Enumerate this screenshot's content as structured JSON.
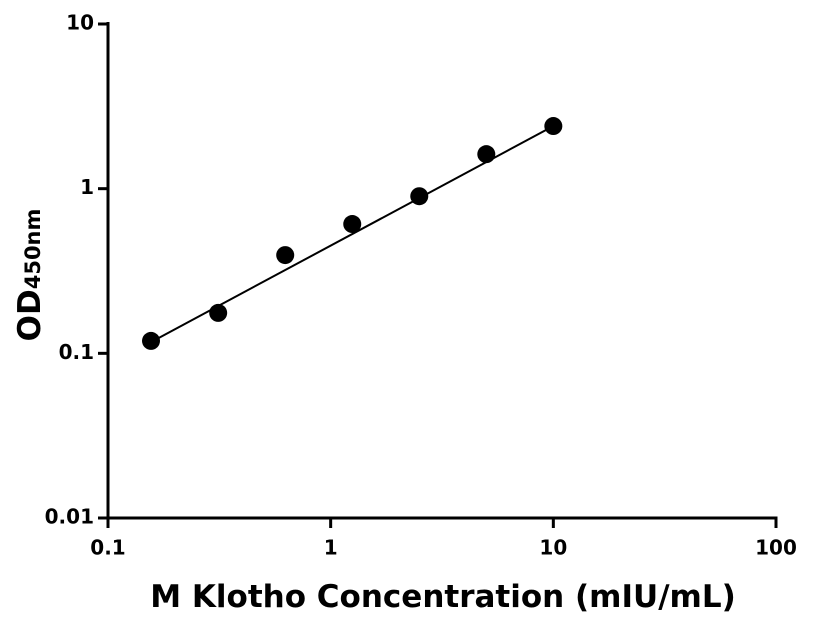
{
  "chart_data": {
    "type": "scatter",
    "xlabel": "M Klotho Concentration (mIU/mL)",
    "ylabel": "OD",
    "ylabel_sub": "450nm",
    "x": [
      0.156,
      0.3125,
      0.625,
      1.25,
      2.5,
      5,
      10
    ],
    "series": [
      {
        "color": "#000000",
        "values": [
          0.119,
          0.176,
          0.395,
          0.61,
          0.9,
          1.62,
          2.4
        ]
      }
    ],
    "fit": {
      "color": "#000000",
      "x": [
        0.156,
        10
      ],
      "values": [
        0.117,
        2.4
      ]
    },
    "xscale": "log",
    "yscale": "log",
    "xlim": [
      0.1,
      100
    ],
    "xticks": [
      0.1,
      1,
      10,
      100
    ],
    "ylim": [
      0.01,
      10
    ],
    "yticks": [
      0.01,
      0.1,
      1,
      10
    ]
  }
}
